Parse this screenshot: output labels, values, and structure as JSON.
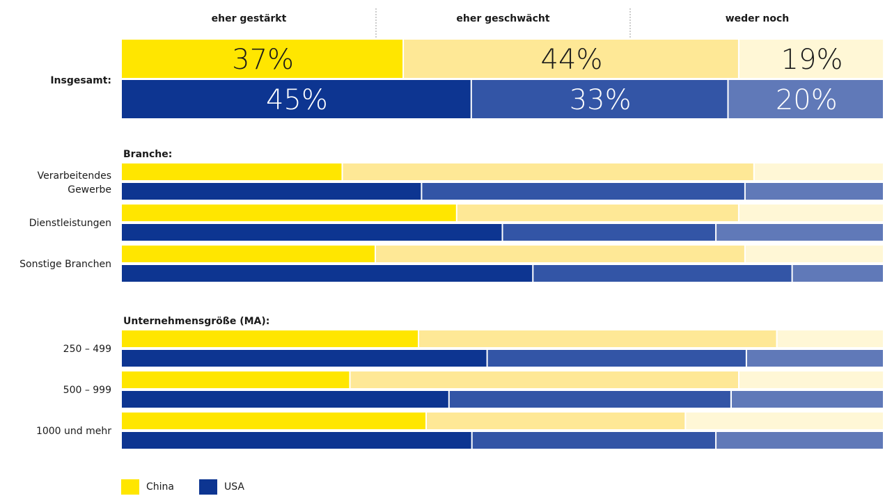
{
  "chart_data": {
    "type": "bar",
    "stacked": true,
    "orientation": "horizontal",
    "columns": [
      "eher gestärkt",
      "eher geschwächt",
      "weder noch"
    ],
    "total": {
      "label": "Insgesamt:",
      "china": [
        37,
        44,
        19
      ],
      "usa": [
        45,
        33,
        20
      ],
      "value_labels_china": [
        "37%",
        "44%",
        "19%"
      ],
      "value_labels_usa": [
        "45%",
        "33%",
        "20%"
      ]
    },
    "groups": [
      {
        "title": "Branche:",
        "rows": [
          {
            "label": [
              "Verarbeitendes",
              "Gewerbe"
            ],
            "china": [
              29,
              54,
              17
            ],
            "usa": [
              39,
              42,
              18
            ]
          },
          {
            "label": [
              "Dienstleistungen"
            ],
            "china": [
              44,
              37,
              19
            ],
            "usa": [
              50,
              28,
              22
            ]
          },
          {
            "label": [
              "Sonstige Branchen"
            ],
            "china": [
              33,
              48,
              18
            ],
            "usa": [
              54,
              34,
              12
            ]
          }
        ]
      },
      {
        "title": "Unternehmensgröße (MA):",
        "rows": [
          {
            "label": [
              "250 – 499"
            ],
            "china": [
              39,
              47,
              14
            ],
            "usa": [
              48,
              34,
              18
            ]
          },
          {
            "label": [
              "500 – 999"
            ],
            "china": [
              30,
              51,
              19
            ],
            "usa": [
              43,
              37,
              20
            ]
          },
          {
            "label": [
              "1000 und mehr"
            ],
            "china": [
              40,
              34,
              26
            ],
            "usa": [
              46,
              32,
              22
            ]
          }
        ]
      }
    ],
    "legend": [
      {
        "name": "China",
        "color": "#FFE600"
      },
      {
        "name": "USA",
        "color": "#0D3591"
      }
    ],
    "colors": {
      "china": [
        "#FFE600",
        "#FEE896",
        "#FFF7D6"
      ],
      "usa": [
        "#0D3591",
        "#3355A6",
        "#6079B8"
      ]
    }
  }
}
